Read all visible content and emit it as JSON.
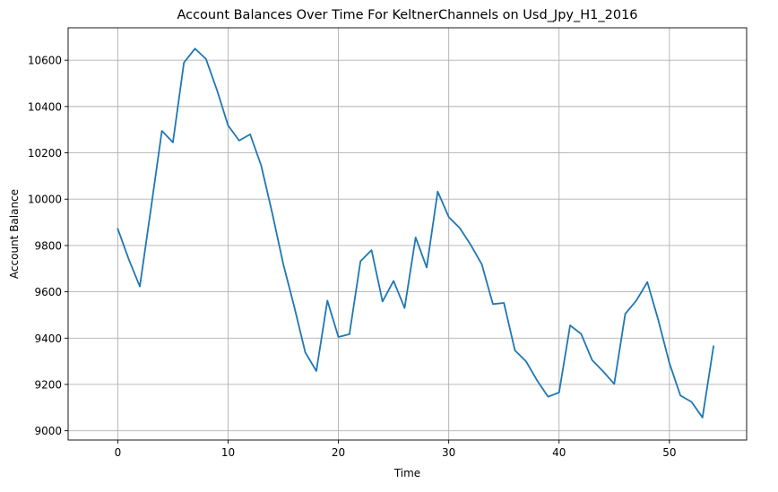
{
  "chart_data": {
    "type": "line",
    "title": "Account Balances Over Time For KeltnerChannels on Usd_Jpy_H1_2016",
    "xlabel": "Time",
    "ylabel": "Account Balance",
    "xlim": [
      -4.5,
      57
    ],
    "ylim": [
      8960,
      10740
    ],
    "xticks": [
      0,
      10,
      20,
      30,
      40,
      50
    ],
    "yticks": [
      9000,
      9200,
      9400,
      9600,
      9800,
      10000,
      10200,
      10400,
      10600
    ],
    "grid": true,
    "line_color": "#1f77b4",
    "series": [
      {
        "values": [
          9872,
          9740,
          9623,
          9957,
          10295,
          10245,
          10590,
          10650,
          10605,
          10470,
          10318,
          10253,
          10280,
          10145,
          9940,
          9720,
          9535,
          9338,
          9258,
          9562,
          9405,
          9417,
          9732,
          9780,
          9558,
          9647,
          9530,
          9835,
          9705,
          10033,
          9923,
          9875,
          9802,
          9718,
          9547,
          9552,
          9347,
          9300,
          9218,
          9147,
          9165,
          9455,
          9418,
          9305,
          9256,
          9202,
          9505,
          9562,
          9642,
          9477,
          9292,
          9152,
          9125,
          9057,
          9365
        ]
      }
    ]
  }
}
